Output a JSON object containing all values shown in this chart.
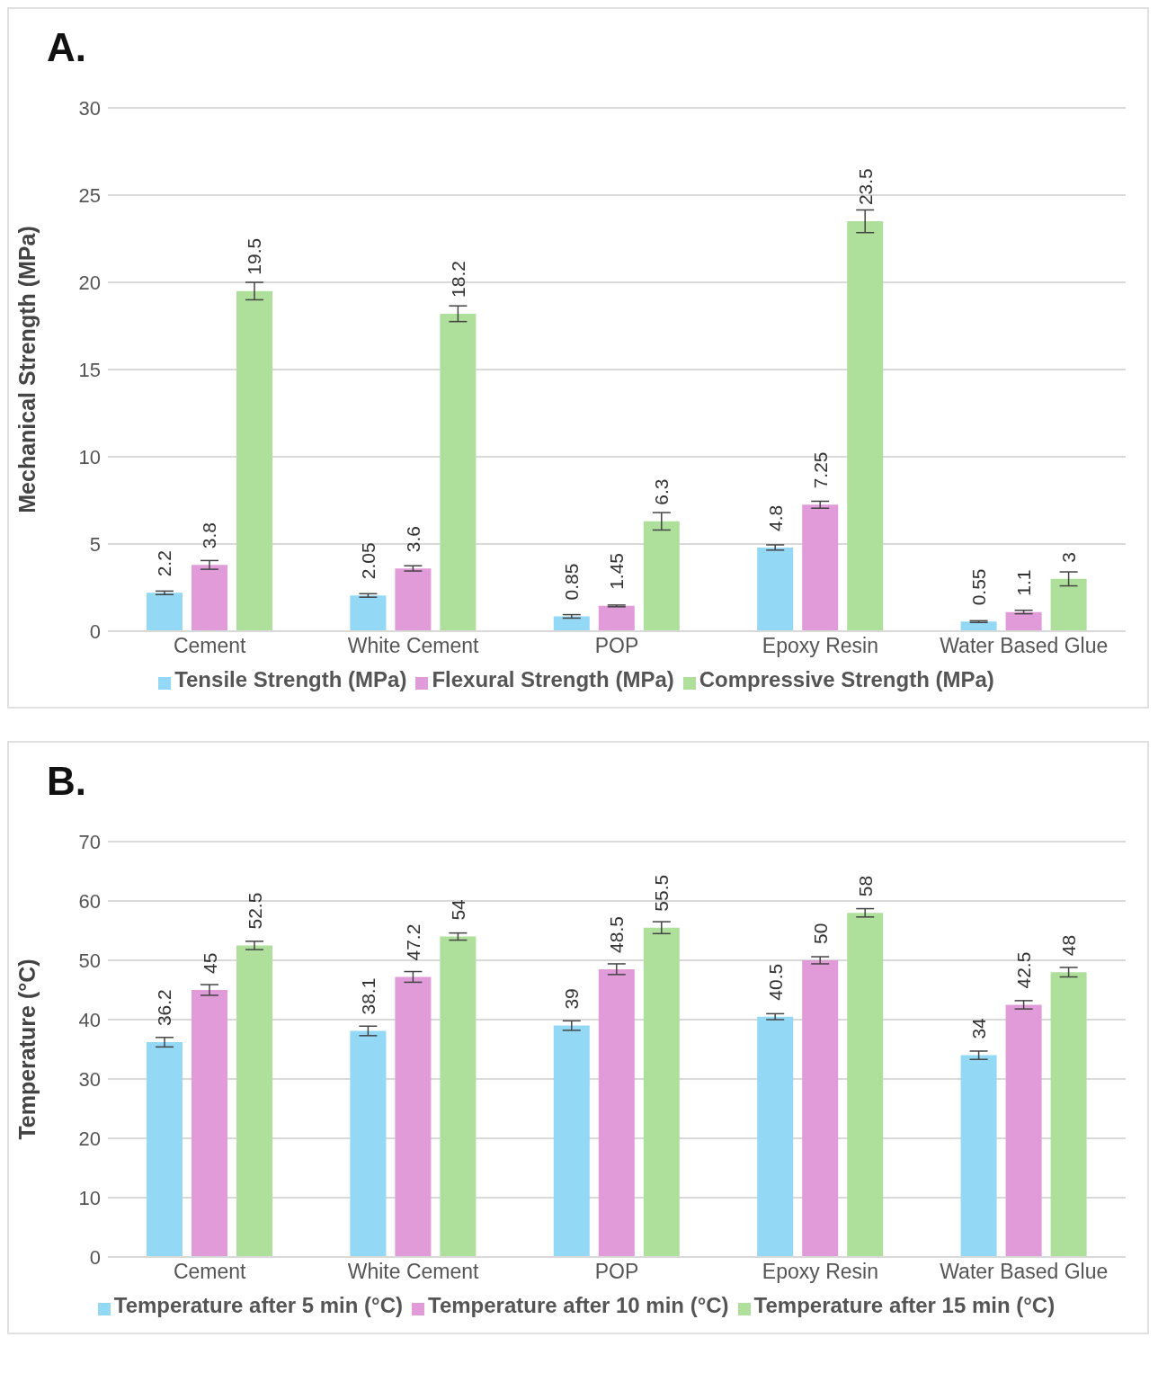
{
  "chart_data": [
    {
      "type": "bar",
      "title": "A.",
      "ylabel": "Mechanical Strength (MPa)",
      "categories": [
        "Cement",
        "White Cement",
        "POP",
        "Epoxy Resin",
        "Water Based Glue"
      ],
      "series": [
        {
          "name": "Tensile Strength (MPa)",
          "color": "#93d8f5",
          "values": [
            2.2,
            2.05,
            0.85,
            4.8,
            0.55
          ],
          "errors": [
            0.1,
            0.1,
            0.1,
            0.15,
            0.05
          ]
        },
        {
          "name": "Flexural Strength (MPa)",
          "color": "#e09bd8",
          "values": [
            3.8,
            3.6,
            1.45,
            7.25,
            1.1
          ],
          "errors": [
            0.25,
            0.15,
            0.05,
            0.2,
            0.1
          ]
        },
        {
          "name": "Compressive Strength (MPa)",
          "color": "#afe09b",
          "values": [
            19.5,
            18.2,
            6.3,
            23.5,
            3
          ],
          "errors": [
            0.5,
            0.45,
            0.5,
            0.65,
            0.4
          ]
        }
      ],
      "ylim": [
        0,
        30
      ],
      "yticks": [
        0,
        5,
        10,
        15,
        20,
        25,
        30
      ],
      "grid": "y",
      "legend": "bottom",
      "data_labels": true
    },
    {
      "type": "bar",
      "title": "B.",
      "ylabel": "Temperature (°C)",
      "categories": [
        "Cement",
        "White Cement",
        "POP",
        "Epoxy Resin",
        "Water Based Glue"
      ],
      "series": [
        {
          "name": "Temperature after 5 min (°C)",
          "color": "#93d8f5",
          "values": [
            36.2,
            38.1,
            39,
            40.5,
            34
          ],
          "errors": [
            0.8,
            0.8,
            0.8,
            0.5,
            0.7
          ]
        },
        {
          "name": "Temperature after 10 min (°C)",
          "color": "#e09bd8",
          "values": [
            45,
            47.2,
            48.5,
            50,
            42.5
          ],
          "errors": [
            0.9,
            0.9,
            0.9,
            0.6,
            0.7
          ]
        },
        {
          "name": "Temperature after 15 min (°C)",
          "color": "#afe09b",
          "values": [
            52.5,
            54,
            55.5,
            58,
            48
          ],
          "errors": [
            0.7,
            0.6,
            1.0,
            0.7,
            0.8
          ]
        }
      ],
      "ylim": [
        0,
        70
      ],
      "yticks": [
        0,
        10,
        20,
        30,
        40,
        50,
        60,
        70
      ],
      "grid": "y",
      "legend": "bottom",
      "data_labels": true
    }
  ]
}
